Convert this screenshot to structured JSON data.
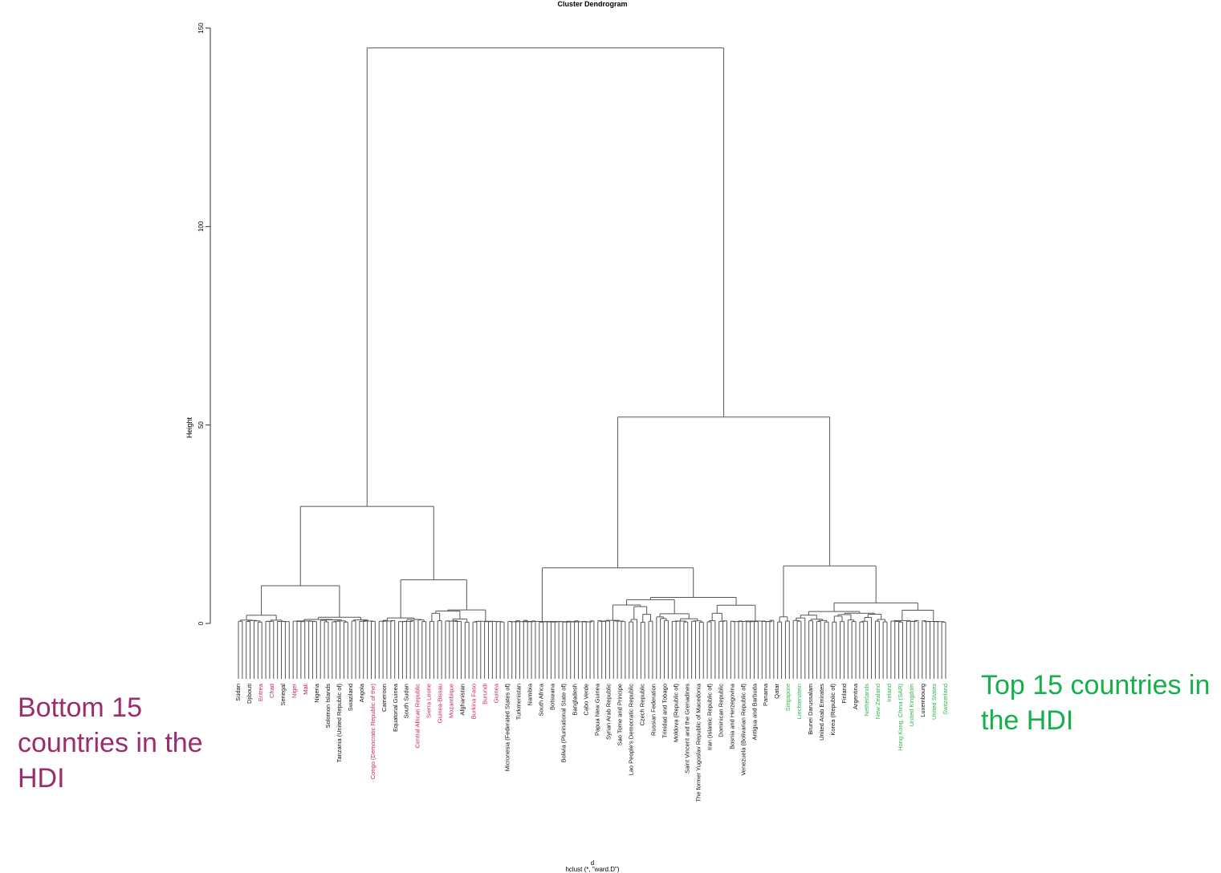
{
  "chart_data": {
    "type": "dendrogram",
    "title": "Cluster Dendrogram",
    "ylabel": "Height",
    "xlabel": "d",
    "sublabel": "hclust (*, \"ward.D\")",
    "ylim": [
      0,
      150
    ],
    "yticks": [
      0,
      50,
      100,
      150
    ],
    "grid": false,
    "leaf_count": 182,
    "colors": {
      "line": "#555555",
      "bottom15": "#cc1f6a",
      "top15": "#2db84a",
      "default": "#111111"
    },
    "merges": [
      {
        "name": "root",
        "height": 145,
        "children": [
          "group-low-hdi",
          "group-high-hdi"
        ]
      },
      {
        "name": "group-low-hdi",
        "height": 29.5,
        "children": [
          "cluster-a",
          "cluster-b"
        ]
      },
      {
        "name": "group-high-hdi",
        "height": 52,
        "children": [
          "cluster-c",
          "cluster-d"
        ]
      },
      {
        "name": "cluster-a",
        "height": 9.5,
        "children": [
          "a1",
          "a2"
        ],
        "leaves": 36
      },
      {
        "name": "cluster-b",
        "height": 11,
        "children": [
          "b1",
          "b2"
        ],
        "leaves": 33
      },
      {
        "name": "cluster-c",
        "height": 14,
        "children": [
          "c1",
          "c2"
        ],
        "leaves": 69
      },
      {
        "name": "cluster-d",
        "height": 14.5,
        "children": [
          "d1",
          "d2"
        ],
        "leaves": 44
      },
      {
        "name": "a1",
        "height": 3.5,
        "leaves": 14
      },
      {
        "name": "a2",
        "height": 6.5,
        "leaves": 22
      },
      {
        "name": "b1",
        "height": 4.5,
        "leaves": 13
      },
      {
        "name": "b2",
        "height": 7.5,
        "leaves": 20
      },
      {
        "name": "c1",
        "height": 5,
        "leaves": 23
      },
      {
        "name": "c2",
        "height": 7.5,
        "leaves": 46
      },
      {
        "name": "d1",
        "height": 4,
        "leaves": 4
      },
      {
        "name": "d2",
        "height": 7.5,
        "leaves": 40
      }
    ],
    "highlight_groups": [
      {
        "label": "Bottom 15 countries in the HDI",
        "color": "#9b2d6e"
      },
      {
        "label": "Top 15 countries in the HDI",
        "color": "#14b04a"
      }
    ],
    "leaf_labels": [
      {
        "text": "Sudan",
        "color": "default"
      },
      {
        "text": "Djibouti",
        "color": "default"
      },
      {
        "text": "Eritrea",
        "color": "bottom15"
      },
      {
        "text": "Chad",
        "color": "bottom15"
      },
      {
        "text": "Senegal",
        "color": "default"
      },
      {
        "text": "Niger",
        "color": "bottom15"
      },
      {
        "text": "Mali",
        "color": "bottom15"
      },
      {
        "text": "Nigeria",
        "color": "default"
      },
      {
        "text": "Solomon Islands",
        "color": "default"
      },
      {
        "text": "Tanzania (United Republic of)",
        "color": "default"
      },
      {
        "text": "Swaziland",
        "color": "default"
      },
      {
        "text": "Angola",
        "color": "default"
      },
      {
        "text": "Congo (Democratic Republic of the)",
        "color": "bottom15"
      },
      {
        "text": "Cameroon",
        "color": "default"
      },
      {
        "text": "Equatorial Guinea",
        "color": "default"
      },
      {
        "text": "South Sudan",
        "color": "default"
      },
      {
        "text": "Central African Republic",
        "color": "bottom15"
      },
      {
        "text": "Sierra Leone",
        "color": "bottom15"
      },
      {
        "text": "Guinea-Bissau",
        "color": "bottom15"
      },
      {
        "text": "Mozambique",
        "color": "bottom15"
      },
      {
        "text": "Afghanistan",
        "color": "default"
      },
      {
        "text": "Burkina Faso",
        "color": "bottom15"
      },
      {
        "text": "Burundi",
        "color": "bottom15"
      },
      {
        "text": "Guinea",
        "color": "bottom15"
      },
      {
        "text": "Micronesia (Federated States of)",
        "color": "default"
      },
      {
        "text": "Turkmenistan",
        "color": "default"
      },
      {
        "text": "Namibia",
        "color": "default"
      },
      {
        "text": "South Africa",
        "color": "default"
      },
      {
        "text": "Botswana",
        "color": "default"
      },
      {
        "text": "Bolivia (Plurinational State of)",
        "color": "default"
      },
      {
        "text": "Bangladesh",
        "color": "default"
      },
      {
        "text": "Cabo Verde",
        "color": "default"
      },
      {
        "text": "Papua New Guinea",
        "color": "default"
      },
      {
        "text": "Syrian Arab Republic",
        "color": "default"
      },
      {
        "text": "Sao Tome and Principe",
        "color": "default"
      },
      {
        "text": "Lao People's Democratic Republic",
        "color": "default"
      },
      {
        "text": "Czech Republic",
        "color": "default"
      },
      {
        "text": "Russian Federation",
        "color": "default"
      },
      {
        "text": "Trinidad and Tobago",
        "color": "default"
      },
      {
        "text": "Moldova (Republic of)",
        "color": "default"
      },
      {
        "text": "Saint Vincent and the Grenadines",
        "color": "default"
      },
      {
        "text": "The former Yugoslav Republic of Macedonia",
        "color": "default"
      },
      {
        "text": "Iran (Islamic Republic of)",
        "color": "default"
      },
      {
        "text": "Dominican Republic",
        "color": "default"
      },
      {
        "text": "Bosnia and Herzegovina",
        "color": "default"
      },
      {
        "text": "Venezuela (Bolivarian Republic of)",
        "color": "default"
      },
      {
        "text": "Antigua and Barbuda",
        "color": "default"
      },
      {
        "text": "Panama",
        "color": "default"
      },
      {
        "text": "Qatar",
        "color": "default"
      },
      {
        "text": "Singapore",
        "color": "top15"
      },
      {
        "text": "Liechtenstein",
        "color": "top15"
      },
      {
        "text": "Brunei Darussalam",
        "color": "default"
      },
      {
        "text": "United Arab Emirates",
        "color": "default"
      },
      {
        "text": "Korea (Republic of)",
        "color": "default"
      },
      {
        "text": "Finland",
        "color": "default"
      },
      {
        "text": "Argentina",
        "color": "default"
      },
      {
        "text": "Netherlands",
        "color": "top15"
      },
      {
        "text": "New Zealand",
        "color": "top15"
      },
      {
        "text": "Ireland",
        "color": "top15"
      },
      {
        "text": "Hong Kong, China (SAR)",
        "color": "top15"
      },
      {
        "text": "United Kingdom",
        "color": "top15"
      },
      {
        "text": "Luxembourg",
        "color": "default"
      },
      {
        "text": "United States",
        "color": "top15"
      },
      {
        "text": "Switzerland",
        "color": "top15"
      }
    ]
  },
  "annotations": {
    "bottom_label": "Bottom 15 countries in the HDI",
    "top_label": "Top 15 countries in the HDI"
  }
}
